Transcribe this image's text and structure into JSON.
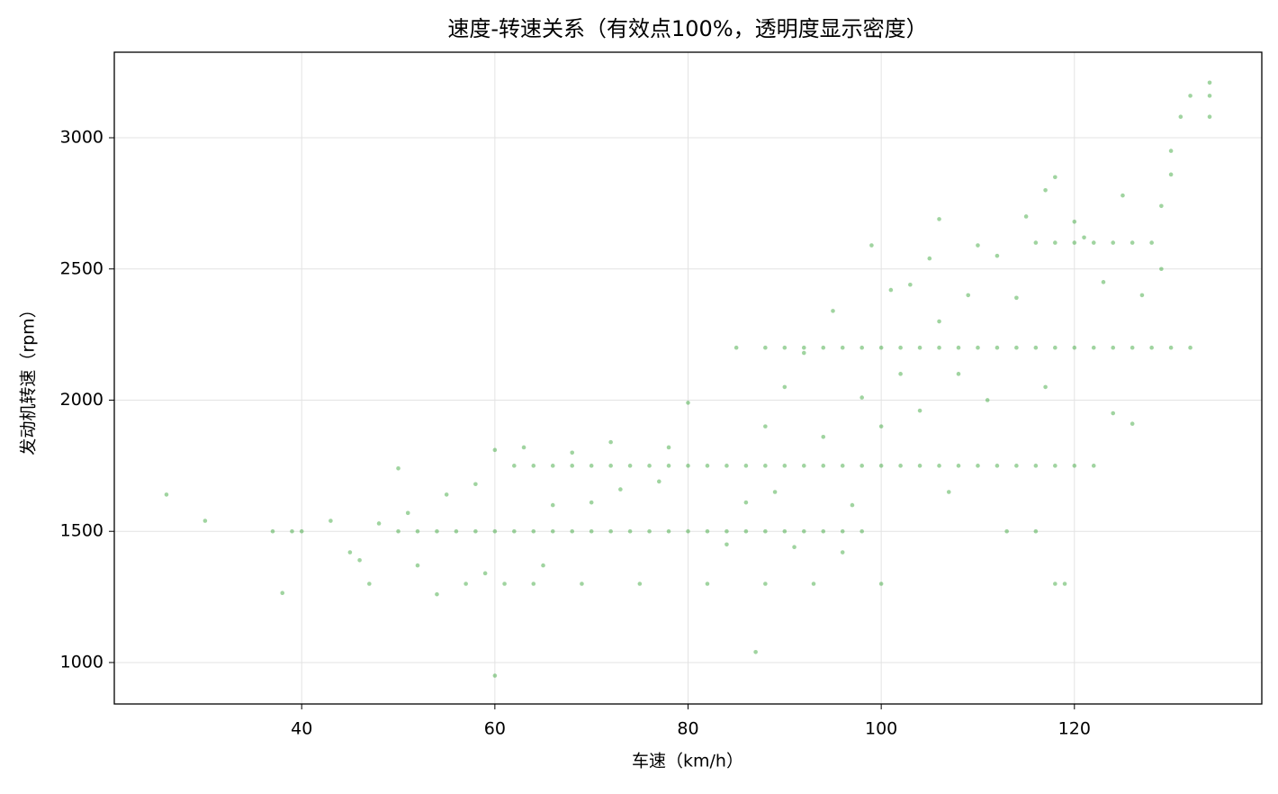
{
  "chart_data": {
    "type": "scatter",
    "title": "速度-转速关系（有效点100%，透明度显示密度）",
    "x_label": "车速（km/h）",
    "y_label": "发动机转速（rpm）",
    "color": "#2ca02c",
    "grid": true,
    "xlim": [
      20.6,
      139.4
    ],
    "ylim": [
      842,
      3326
    ],
    "xticks": [
      40,
      60,
      80,
      100,
      120
    ],
    "yticks": [
      1000,
      1500,
      2000,
      2500,
      3000
    ],
    "x": [
      50,
      52,
      54,
      56,
      58,
      60,
      62,
      64,
      66,
      68,
      70,
      72,
      74,
      76,
      78,
      80,
      82,
      84,
      86,
      88,
      90,
      92,
      94,
      96,
      98,
      62,
      64,
      66,
      68,
      70,
      72,
      74,
      76,
      78,
      80,
      82,
      84,
      86,
      88,
      90,
      92,
      94,
      96,
      98,
      100,
      102,
      104,
      106,
      108,
      110,
      112,
      114,
      116,
      118,
      120,
      122,
      88,
      90,
      92,
      94,
      96,
      98,
      100,
      102,
      104,
      106,
      108,
      110,
      112,
      114,
      116,
      118,
      120,
      122,
      124,
      126,
      128,
      130,
      132,
      116,
      118,
      120,
      122,
      124,
      126,
      128,
      26,
      30,
      37,
      38,
      39,
      40,
      43,
      45,
      46,
      47,
      48,
      50,
      51,
      52,
      54,
      55,
      57,
      58,
      59,
      60,
      60,
      61,
      63,
      64,
      65,
      66,
      68,
      69,
      70,
      72,
      73,
      75,
      77,
      78,
      80,
      82,
      84,
      85,
      86,
      87,
      88,
      88,
      89,
      90,
      91,
      92,
      93,
      94,
      95,
      96,
      97,
      98,
      99,
      100,
      100,
      101,
      102,
      103,
      104,
      105,
      106,
      106,
      107,
      108,
      109,
      110,
      111,
      112,
      113,
      114,
      115,
      116,
      117,
      117,
      118,
      118,
      119,
      120,
      121,
      123,
      124,
      125,
      126,
      127,
      129,
      129,
      130,
      130,
      131,
      132,
      134,
      134,
      134
    ],
    "values": [
      1500,
      1500,
      1500,
      1500,
      1500,
      1500,
      1500,
      1500,
      1500,
      1500,
      1500,
      1500,
      1500,
      1500,
      1500,
      1500,
      1500,
      1500,
      1500,
      1500,
      1500,
      1500,
      1500,
      1500,
      1500,
      1750,
      1750,
      1750,
      1750,
      1750,
      1750,
      1750,
      1750,
      1750,
      1750,
      1750,
      1750,
      1750,
      1750,
      1750,
      1750,
      1750,
      1750,
      1750,
      1750,
      1750,
      1750,
      1750,
      1750,
      1750,
      1750,
      1750,
      1750,
      1750,
      1750,
      1750,
      2200,
      2200,
      2200,
      2200,
      2200,
      2200,
      2200,
      2200,
      2200,
      2200,
      2200,
      2200,
      2200,
      2200,
      2200,
      2200,
      2200,
      2200,
      2200,
      2200,
      2200,
      2200,
      2200,
      2600,
      2600,
      2600,
      2600,
      2600,
      2600,
      2600,
      1640,
      1540,
      1500,
      1265,
      1500,
      1500,
      1540,
      1420,
      1390,
      1300,
      1530,
      1740,
      1570,
      1370,
      1260,
      1640,
      1300,
      1680,
      1340,
      950,
      1810,
      1300,
      1820,
      1300,
      1370,
      1600,
      1800,
      1300,
      1610,
      1840,
      1660,
      1300,
      1690,
      1820,
      1990,
      1300,
      1450,
      2200,
      1610,
      1040,
      1300,
      1900,
      1650,
      2050,
      1440,
      2180,
      1300,
      1860,
      2340,
      1420,
      1600,
      2010,
      2590,
      1300,
      1900,
      2420,
      2100,
      2440,
      1960,
      2540,
      2690,
      2300,
      1650,
      2100,
      2400,
      2590,
      2000,
      2550,
      1500,
      2390,
      2700,
      1500,
      2800,
      2050,
      2850,
      1300,
      1300,
      2680,
      2620,
      2450,
      1950,
      2780,
      1910,
      2400,
      2500,
      2740,
      2860,
      2950,
      3080,
      3160,
      3210,
      3160,
      3080
    ]
  }
}
